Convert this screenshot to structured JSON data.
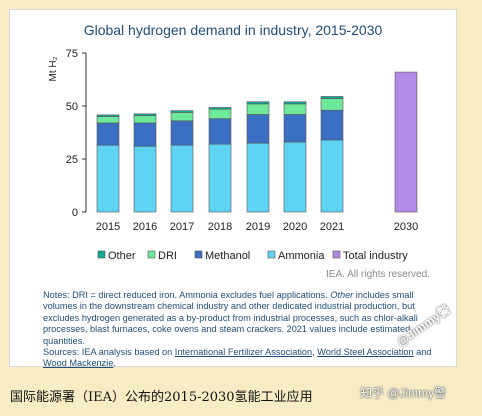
{
  "chart_data": {
    "type": "bar",
    "title": "Global hydrogen demand in industry, 2015-2030",
    "ylabel": "Mt H₂",
    "ylim": [
      0,
      75
    ],
    "yticks": [
      "0",
      "25",
      "50",
      "75"
    ],
    "categories": [
      "2015",
      "2016",
      "2017",
      "2018",
      "2019",
      "2020",
      "2021",
      "2030"
    ],
    "stacked": true,
    "series": [
      {
        "name": "Ammonia",
        "color": "#5fd3f3",
        "values": [
          31.5,
          31,
          31.5,
          32,
          32.5,
          33,
          34,
          null
        ]
      },
      {
        "name": "Methanol",
        "color": "#3b6fc4",
        "values": [
          10.5,
          11,
          11.5,
          12,
          13.5,
          13,
          14,
          null
        ]
      },
      {
        "name": "DRI",
        "color": "#6ee89b",
        "values": [
          3,
          3.5,
          4,
          4.5,
          5,
          5,
          5.5,
          null
        ]
      },
      {
        "name": "Other",
        "color": "#12a89a",
        "values": [
          0.8,
          0.8,
          0.8,
          0.8,
          1,
          1,
          1,
          null
        ]
      },
      {
        "name": "Total industry",
        "color": "#b28ae8",
        "values": [
          null,
          null,
          null,
          null,
          null,
          null,
          null,
          66
        ]
      }
    ],
    "legend": [
      "Other",
      "DRI",
      "Methanol",
      "Ammonia",
      "Total industry"
    ],
    "legend_position": "bottom",
    "grid": false
  },
  "rights": "IEA. All rights reserved.",
  "notes": {
    "part1": "Notes: DRI = direct reduced iron. Ammonia excludes fuel applications. ",
    "other_italic": "Other",
    "part2": " includes small volumes in the downstream chemical industry and other dedicated industrial production, but excludes hydrogen generated as a by-product from industrial processes, such as chlor-alkali processes, blast furnaces, coke ovens and steam crackers. 2021 values include estimated quantities.",
    "sources_prefix": "Sources: IEA analysis based on ",
    "link1": "International Fertilizer Association",
    "sep": ", ",
    "link2": "World Steel Association",
    "and": " and ",
    "link3": "Wood Mackenzie",
    "end": "."
  },
  "caption": "国际能源署（IEA）公布的2015-2030氢能工业应用",
  "watermark": "知乎 @Jimmy警",
  "watermark2": "@Jimmy警"
}
